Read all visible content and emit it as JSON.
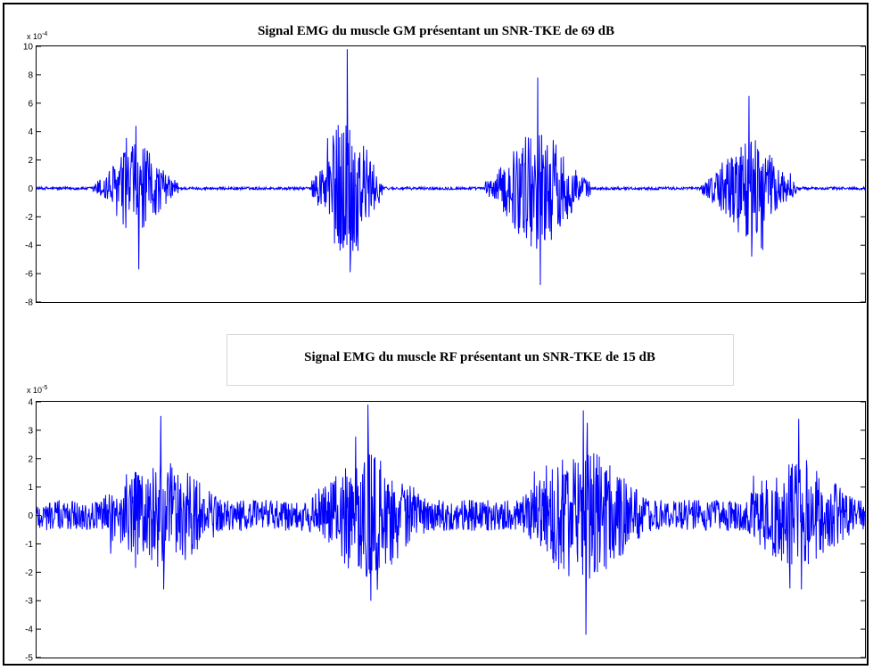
{
  "chart_data": [
    {
      "type": "line",
      "title": "Signal EMG du muscle GM présentant un SNR-TKE de 69 dB",
      "exponent_label": "x 10^-4",
      "exponent_base": "x 10",
      "exponent_power": "-4",
      "ylim": [
        -8,
        10
      ],
      "yticks": [
        -8,
        -6,
        -4,
        -2,
        0,
        2,
        4,
        6,
        8,
        10
      ],
      "ytick_labels": [
        "-8",
        "-6",
        "-4",
        "-2",
        "0",
        "2",
        "4",
        "6",
        "8",
        "10"
      ],
      "xlim": [
        0,
        1000
      ],
      "grid": false,
      "line_color": "#0000ff",
      "series": [
        {
          "bursts": [
            {
              "center": 120,
              "width": 90,
              "max": 4.4,
              "min": -5.7
            },
            {
              "center": 375,
              "width": 75,
              "max": 9.8,
              "min": -5.9
            },
            {
              "center": 605,
              "width": 110,
              "max": 7.8,
              "min": -6.8
            },
            {
              "center": 860,
              "width": 100,
              "max": 6.5,
              "min": -4.8
            }
          ],
          "baseline_noise": 0.1
        }
      ]
    },
    {
      "type": "line",
      "title": "Signal EMG du muscle RF présentant un SNR-TKE de 15 dB",
      "exponent_label": "x 10^-5",
      "exponent_base": "x 10",
      "exponent_power": "-5",
      "ylim": [
        -5,
        4
      ],
      "yticks": [
        -5,
        -4,
        -3,
        -2,
        -1,
        0,
        1,
        2,
        3,
        4
      ],
      "ytick_labels": [
        "-5",
        "-4",
        "-3",
        "-2",
        "-1",
        "0",
        "1",
        "2",
        "3",
        "4"
      ],
      "xlim": [
        0,
        1000
      ],
      "grid": false,
      "line_color": "#0000ff",
      "series": [
        {
          "bursts": [
            {
              "center": 150,
              "width": 170,
              "max": 3.5,
              "min": -2.6
            },
            {
              "center": 400,
              "width": 160,
              "max": 3.9,
              "min": -3.0
            },
            {
              "center": 660,
              "width": 170,
              "max": 3.7,
              "min": -4.2
            },
            {
              "center": 920,
              "width": 160,
              "max": 3.4,
              "min": -2.6
            }
          ],
          "baseline_noise": 0.55
        }
      ]
    }
  ]
}
